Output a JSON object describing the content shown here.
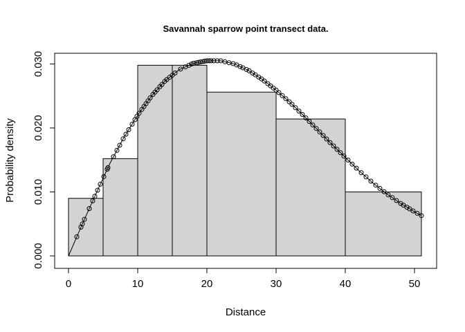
{
  "chart_data": {
    "type": "histogram",
    "title": "Savannah sparrow point transect data.",
    "xlabel": "Distance",
    "ylabel": "Probability density",
    "xlim": [
      0,
      51
    ],
    "ylim": [
      0,
      0.03
    ],
    "x_ticks": [
      0,
      10,
      20,
      30,
      40,
      50
    ],
    "x_tick_labels": [
      "0",
      "10",
      "20",
      "30",
      "40",
      "50"
    ],
    "y_ticks": [
      0,
      0.01,
      0.02,
      0.03
    ],
    "y_tick_labels": [
      "0.000",
      "0.010",
      "0.020",
      "0.030"
    ],
    "bins": [
      {
        "from": 0,
        "to": 5,
        "density": 0.009
      },
      {
        "from": 5,
        "to": 10,
        "density": 0.0152
      },
      {
        "from": 10,
        "to": 15,
        "density": 0.0298
      },
      {
        "from": 15,
        "to": 20,
        "density": 0.0298
      },
      {
        "from": 20,
        "to": 30,
        "density": 0.0256
      },
      {
        "from": 30,
        "to": 40,
        "density": 0.0214
      },
      {
        "from": 40,
        "to": 51,
        "density": 0.01
      }
    ],
    "bar_fill": "#d3d3d3",
    "fitted_curve": {
      "description_type": "line",
      "x": [
        0,
        2,
        4,
        6,
        8,
        10,
        12,
        14,
        16,
        18,
        20,
        22,
        24,
        26,
        28,
        30,
        32,
        34,
        36,
        38,
        40,
        42,
        44,
        46,
        48,
        50,
        51
      ],
      "y": [
        0.0,
        0.005,
        0.0098,
        0.0145,
        0.0185,
        0.022,
        0.025,
        0.0274,
        0.0291,
        0.0301,
        0.0305,
        0.0305,
        0.03,
        0.029,
        0.0276,
        0.0259,
        0.024,
        0.0219,
        0.0197,
        0.0175,
        0.0154,
        0.0133,
        0.0114,
        0.0097,
        0.0082,
        0.0069,
        0.0063
      ]
    },
    "points_x": [
      1.2,
      1.8,
      2.0,
      2.3,
      3.0,
      3.5,
      3.8,
      4.2,
      4.6,
      5.1,
      5.6,
      5.7,
      6.5,
      7.0,
      7.4,
      7.9,
      8.3,
      8.7,
      9.2,
      9.6,
      9.9,
      10.2,
      10.6,
      10.9,
      11.2,
      11.5,
      11.8,
      12.2,
      12.5,
      12.8,
      13.2,
      13.5,
      13.9,
      14.2,
      14.6,
      15.0,
      15.4,
      16.2,
      16.9,
      17.4,
      17.8,
      18.1,
      18.5,
      18.8,
      19.1,
      19.4,
      19.7,
      20.0,
      20.3,
      20.6,
      21.0,
      21.5,
      22.0,
      22.6,
      23.2,
      23.8,
      24.3,
      24.8,
      25.2,
      25.7,
      26.1,
      26.6,
      27.0,
      27.5,
      27.9,
      28.3,
      28.8,
      29.2,
      29.6,
      30.0,
      30.4,
      30.9,
      31.4,
      31.9,
      32.3,
      32.8,
      33.3,
      33.8,
      34.3,
      34.8,
      35.3,
      35.8,
      36.3,
      36.8,
      37.3,
      37.8,
      38.3,
      38.8,
      39.3,
      39.8,
      40.4,
      41.0,
      41.6,
      42.3,
      43.0,
      43.7,
      44.4,
      45.0,
      45.6,
      46.2,
      46.8,
      47.4,
      48.0,
      48.4,
      48.9,
      49.3,
      49.8,
      50.4,
      51.0
    ]
  }
}
